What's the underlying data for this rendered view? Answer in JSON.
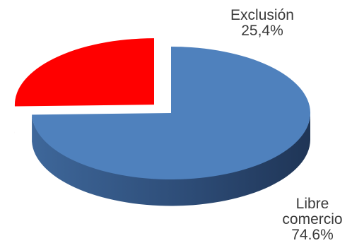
{
  "chart_data": {
    "type": "pie",
    "style": "3d-exploded",
    "slices": [
      {
        "label": "Exclusión",
        "value": 25.4,
        "value_text": "25,4%",
        "color": "#ff0000",
        "side_color": "#8a0000"
      },
      {
        "label": "Libre comercio",
        "value": 74.6,
        "label_lines": [
          "Libre",
          "comercio"
        ],
        "value_text": "74.6%",
        "color": "#4f81bd",
        "side_color": "#2e4d78"
      }
    ],
    "title": "",
    "legend": "none"
  }
}
